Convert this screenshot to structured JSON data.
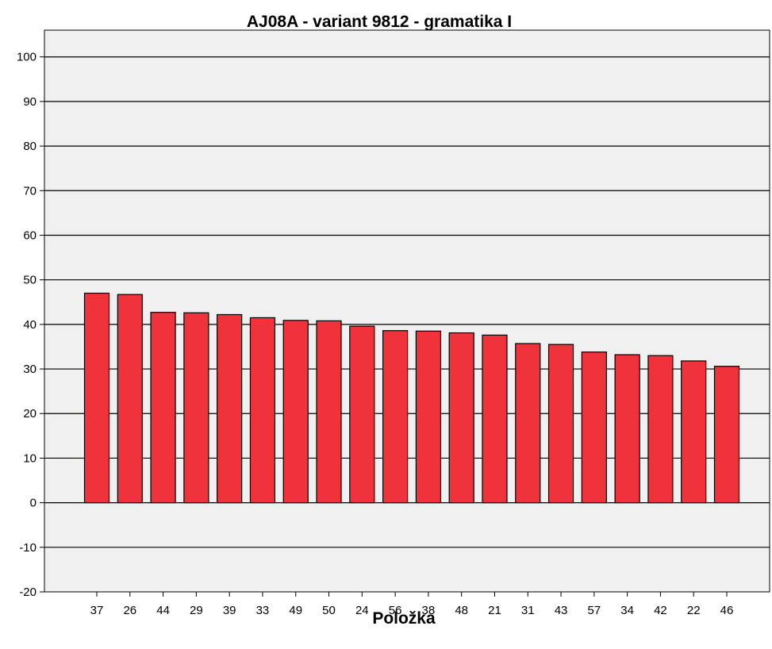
{
  "chart_data": {
    "type": "bar",
    "title": "AJ08A - variant 9812 - gramatika I",
    "xlabel": "Položka",
    "ylabel": "",
    "ylim": [
      -20,
      106
    ],
    "yticks": [
      -20,
      -10,
      0,
      10,
      20,
      30,
      40,
      50,
      60,
      70,
      80,
      90,
      100
    ],
    "grid": true,
    "categories": [
      "37",
      "26",
      "44",
      "29",
      "39",
      "33",
      "49",
      "50",
      "24",
      "56",
      "38",
      "48",
      "21",
      "31",
      "43",
      "57",
      "34",
      "42",
      "22",
      "46"
    ],
    "values": [
      47.0,
      46.7,
      42.7,
      42.6,
      42.2,
      41.5,
      40.9,
      40.8,
      39.6,
      38.6,
      38.5,
      38.1,
      37.6,
      35.7,
      35.5,
      33.8,
      33.2,
      33.0,
      31.8,
      30.6
    ],
    "colors": {
      "bar": "#f0323b",
      "plot_bg": "#f0f0f0",
      "grid": "#000000"
    }
  }
}
